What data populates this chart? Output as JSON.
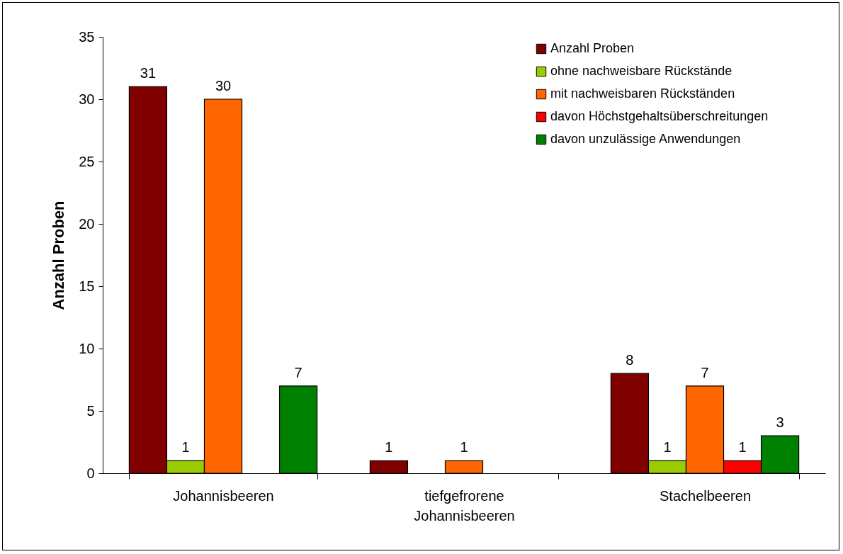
{
  "chart_data": {
    "type": "bar",
    "ylabel": "Anzahl Proben",
    "categories": [
      "Johannisbeeren",
      "tiefgefrorene Johannisbeeren",
      "Stachelbeeren"
    ],
    "series": [
      {
        "name": "Anzahl Proben",
        "color": "#800000",
        "values": [
          31,
          1,
          8
        ]
      },
      {
        "name": "ohne nachweisbare Rückstände",
        "color": "#99cc00",
        "values": [
          1,
          null,
          1
        ]
      },
      {
        "name": "mit nachweisbaren Rückständen",
        "color": "#ff6600",
        "values": [
          30,
          1,
          7
        ]
      },
      {
        "name": "davon Höchstgehaltsüberschreitungen",
        "color": "#ff0000",
        "values": [
          null,
          null,
          1
        ]
      },
      {
        "name": "davon unzulässige Anwendungen",
        "color": "#008000",
        "values": [
          7,
          null,
          3
        ]
      }
    ],
    "ylim": [
      0,
      35
    ],
    "yticks": [
      0,
      5,
      10,
      15,
      20,
      25,
      30,
      35
    ],
    "grid": false,
    "legend": "top right",
    "data_labels": true
  }
}
